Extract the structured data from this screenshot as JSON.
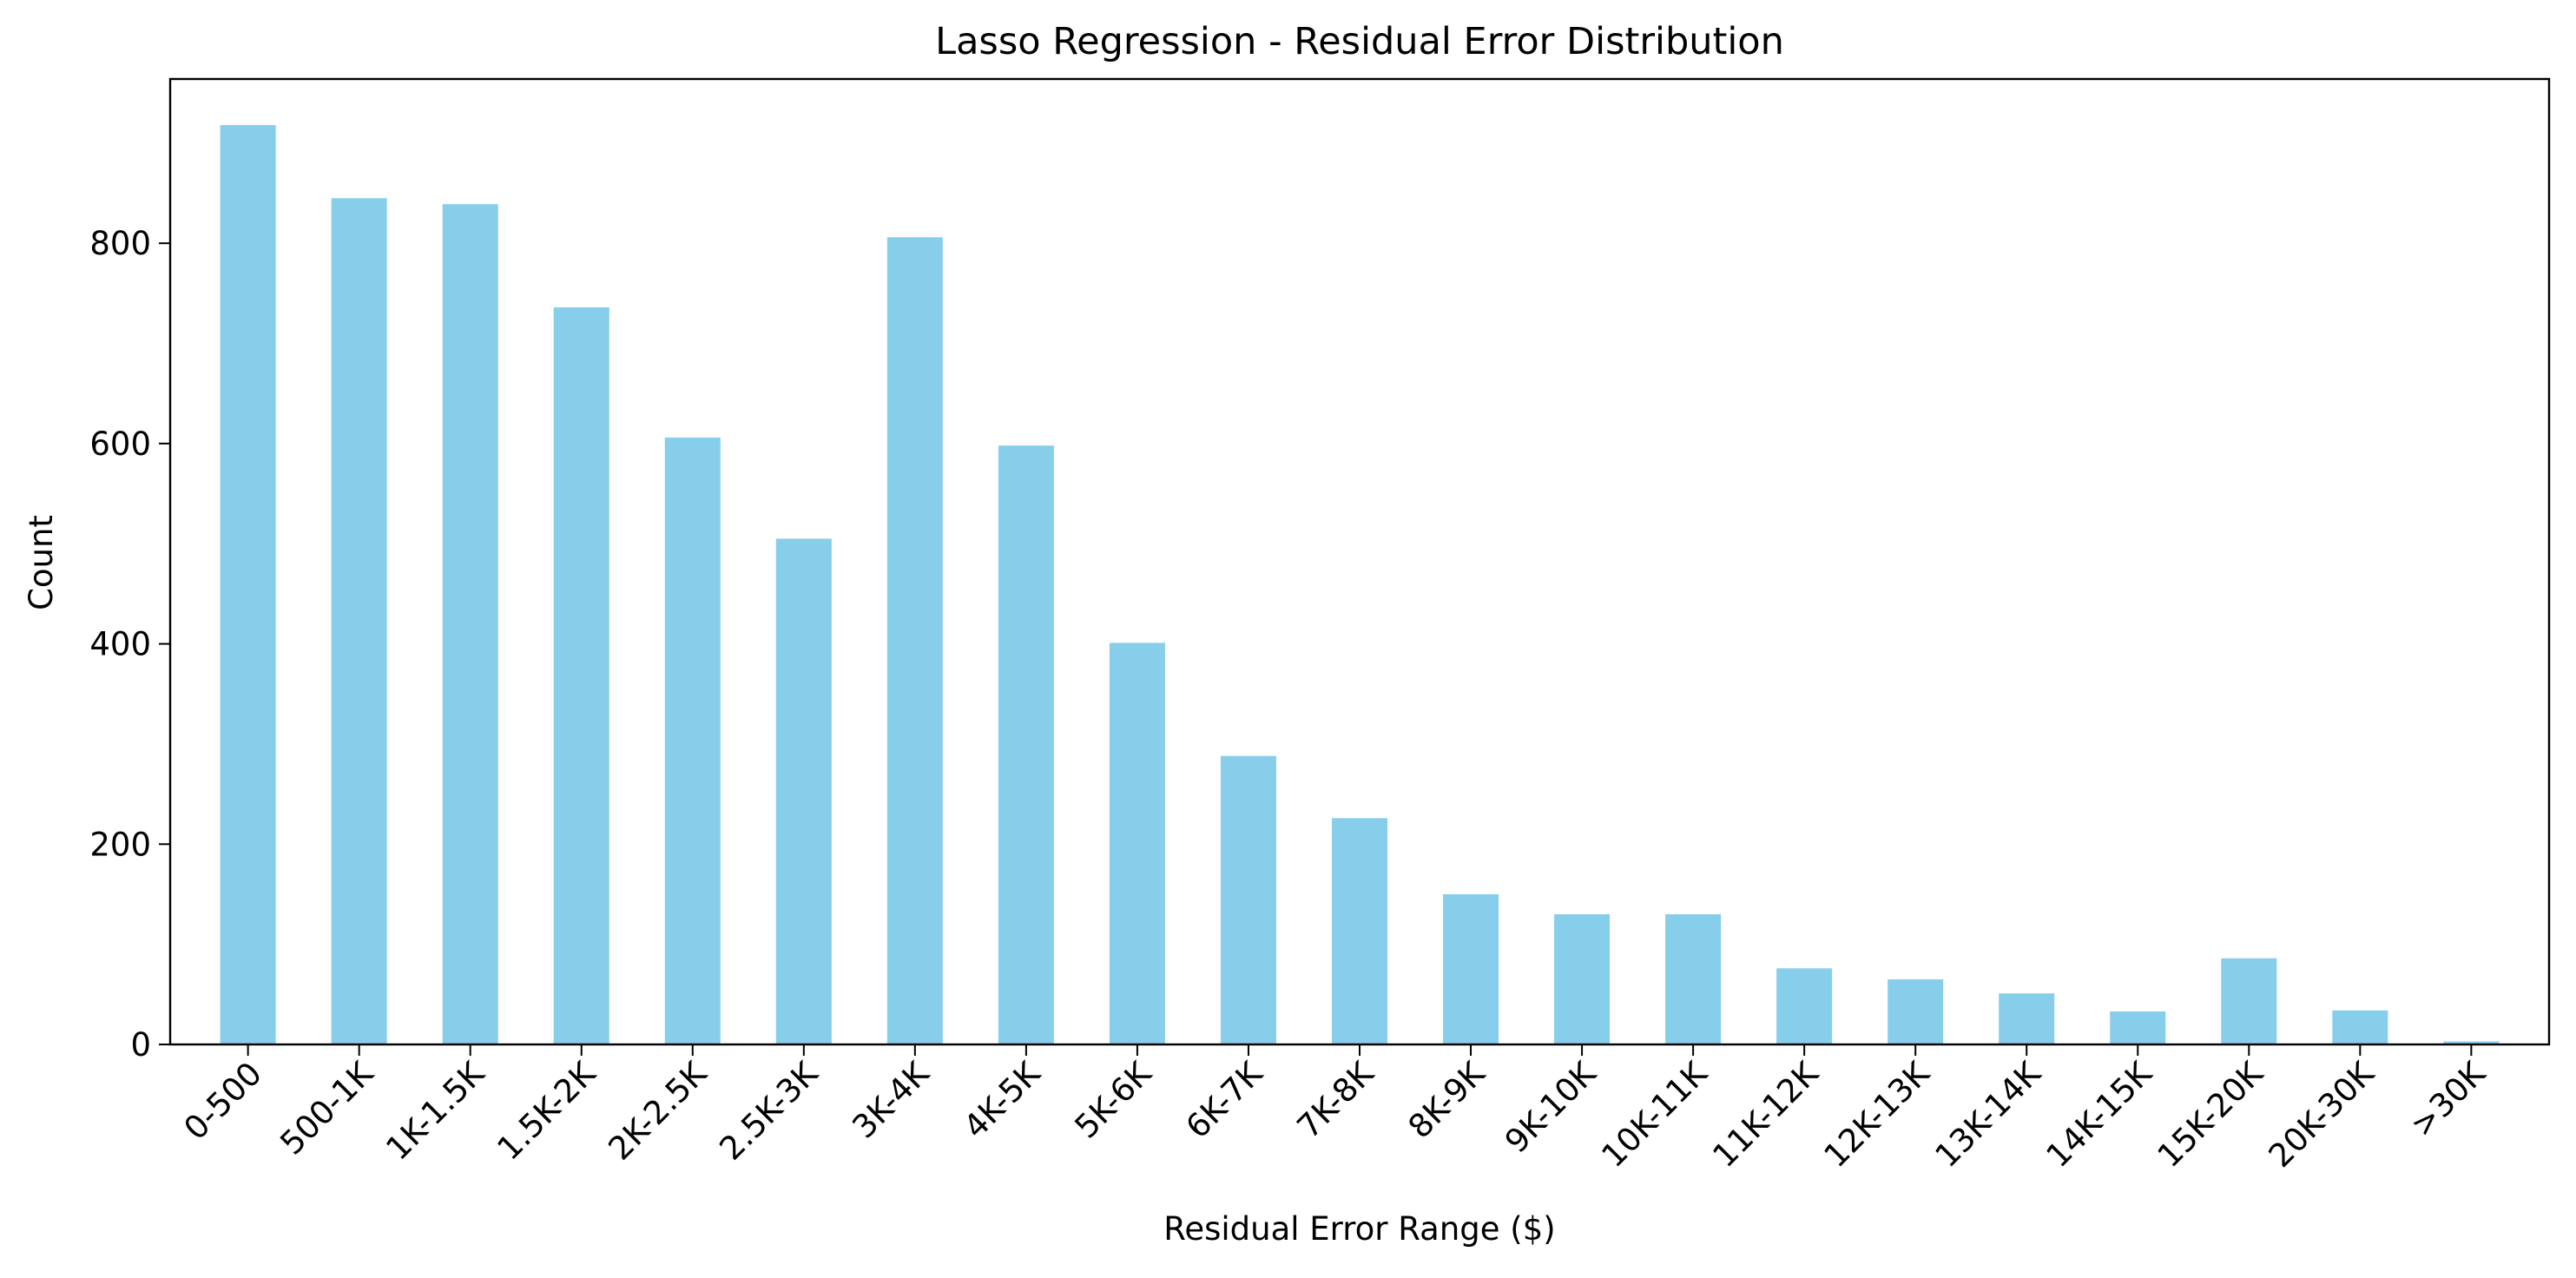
{
  "chart_data": {
    "type": "bar",
    "title": "Lasso Regression - Residual Error Distribution",
    "xlabel": "Residual Error Range ($)",
    "ylabel": "Count",
    "categories": [
      "0-500",
      "500-1K",
      "1K-1.5K",
      "1.5K-2K",
      "2K-2.5K",
      "2.5K-3K",
      "3K-4K",
      "4K-5K",
      "5K-6K",
      "6K-7K",
      "7K-8K",
      "8K-9K",
      "9K-10K",
      "10K-11K",
      "11K-12K",
      "12K-13K",
      "13K-14K",
      "14K-15K",
      "15K-20K",
      "20K-30K",
      ">30K"
    ],
    "values": [
      918,
      845,
      839,
      736,
      606,
      505,
      806,
      598,
      401,
      288,
      226,
      150,
      130,
      130,
      76,
      65,
      51,
      33,
      86,
      34,
      3
    ],
    "ylim": [
      0,
      964
    ],
    "yticks": [
      0,
      200,
      400,
      600,
      800
    ],
    "bar_color": "#87ceeb",
    "grid": false,
    "legend": "none"
  }
}
